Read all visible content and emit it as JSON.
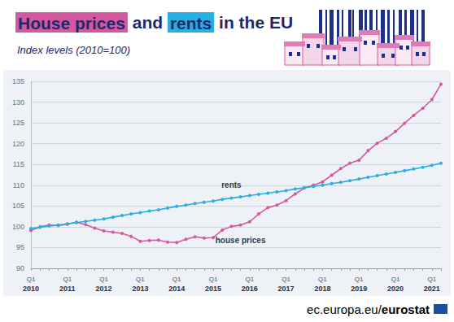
{
  "chart_data": {
    "type": "line",
    "title": "House prices and rents in the EU",
    "subtitle": "Index levels (2010=100)",
    "source": "ec.europa.eu/eurostat",
    "categories": [
      "Q1\n2010",
      null,
      null,
      null,
      "Q1\n2011",
      null,
      null,
      null,
      "Q1\n2012",
      null,
      null,
      null,
      "Q1\n2013",
      null,
      null,
      null,
      "Q1\n2014",
      null,
      null,
      null,
      "Q1\n2015",
      null,
      null,
      null,
      "Q1\n2016",
      null,
      null,
      null,
      "Q1\n2017",
      null,
      null,
      null,
      "Q1\n2018",
      null,
      null,
      null,
      "Q1\n2019",
      null,
      null,
      null,
      "Q1\n2020",
      null,
      null,
      null,
      "Q1\n2021",
      null
    ],
    "series": [
      {
        "name": "house prices",
        "color": "#d4589f",
        "values": [
          99.1,
          100.0,
          100.4,
          100.3,
          100.6,
          101.1,
          100.5,
          99.7,
          99.0,
          98.7,
          98.4,
          97.7,
          96.5,
          96.7,
          96.8,
          96.3,
          96.2,
          97.0,
          97.6,
          97.3,
          97.4,
          99.2,
          100.1,
          100.4,
          101.2,
          103.1,
          104.6,
          105.2,
          106.3,
          107.9,
          109.3,
          110.0,
          110.8,
          112.4,
          114.0,
          115.3,
          116.0,
          118.3,
          120.1,
          121.3,
          122.9,
          124.9,
          126.8,
          128.5,
          130.6,
          134.3
        ]
      },
      {
        "name": "rents",
        "color": "#27aee3",
        "values": [
          99.6,
          99.9,
          100.2,
          100.4,
          100.7,
          101.0,
          101.3,
          101.6,
          101.9,
          102.3,
          102.7,
          103.1,
          103.4,
          103.8,
          104.1,
          104.5,
          104.9,
          105.2,
          105.6,
          105.9,
          106.2,
          106.6,
          106.9,
          107.2,
          107.5,
          107.8,
          108.1,
          108.4,
          108.7,
          109.1,
          109.4,
          109.7,
          110.0,
          110.4,
          110.7,
          111.1,
          111.5,
          111.9,
          112.3,
          112.7,
          113.1,
          113.5,
          113.9,
          114.3,
          114.8,
          115.3
        ]
      }
    ],
    "ylim": [
      90,
      135
    ],
    "yticks": [
      90,
      95,
      100,
      105,
      110,
      115,
      120,
      125,
      130,
      135
    ],
    "grid": true,
    "marker": "circle"
  }
}
